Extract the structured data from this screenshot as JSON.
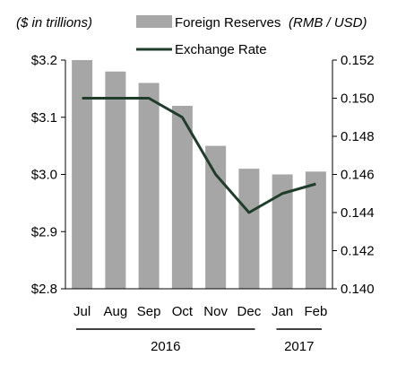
{
  "chart_data": {
    "type": "bar",
    "left_axis_label": "($ in trillions)",
    "right_axis_label": "(RMB / USD)",
    "categories": [
      "Jul",
      "Aug",
      "Sep",
      "Oct",
      "Nov",
      "Dec",
      "Jan",
      "Feb"
    ],
    "year_groups": [
      {
        "label": "2016",
        "from": 0,
        "to": 5
      },
      {
        "label": "2017",
        "from": 6,
        "to": 7
      }
    ],
    "series": [
      {
        "name": "Foreign Reserves",
        "type": "bar",
        "axis": "left",
        "color": "#a6a6a6",
        "values": [
          3.2,
          3.18,
          3.16,
          3.12,
          3.05,
          3.01,
          3.0,
          3.005
        ]
      },
      {
        "name": "Exchange Rate",
        "type": "line",
        "axis": "right",
        "color": "#1f3d2a",
        "values": [
          0.15,
          0.15,
          0.15,
          0.149,
          0.146,
          0.144,
          0.145,
          0.1455
        ]
      }
    ],
    "left_axis": {
      "ylim": [
        2.8,
        3.2
      ],
      "ticks": [
        2.8,
        2.9,
        3.0,
        3.1,
        3.2
      ],
      "tick_labels": [
        "$2.8",
        "$2.9",
        "$3.0",
        "$3.1",
        "$3.2"
      ]
    },
    "right_axis": {
      "ylim": [
        0.14,
        0.152
      ],
      "ticks": [
        0.14,
        0.142,
        0.144,
        0.146,
        0.148,
        0.15,
        0.152
      ],
      "tick_labels": [
        "0.140",
        "0.142",
        "0.144",
        "0.146",
        "0.148",
        "0.150",
        "0.152"
      ]
    },
    "grid": false,
    "legend_position": "top"
  }
}
